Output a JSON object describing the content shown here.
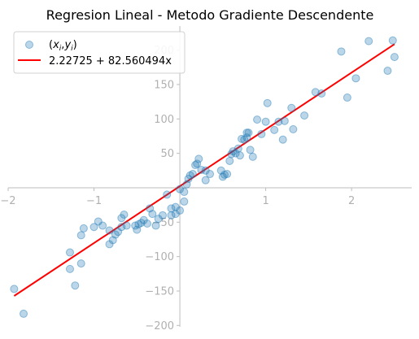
{
  "chart_data": {
    "type": "scatter",
    "title": "Regresion Lineal - Metodo Gradiente Descendente",
    "xlim": [
      -2.0,
      2.7
    ],
    "ylim": [
      -202,
      235
    ],
    "x_ticks": [
      -2,
      -1,
      0,
      1,
      2
    ],
    "y_ticks": [
      -200,
      -150,
      -100,
      -50,
      50,
      100,
      150,
      200
    ],
    "x_tick_labels": [
      "−2",
      "−1",
      "",
      "1",
      "2"
    ],
    "y_tick_labels": [
      "−200",
      "−150",
      "−100",
      "−50",
      "50",
      "100",
      "150",
      "200"
    ],
    "grid": false,
    "spines": "centered",
    "legend_position": "top-left",
    "colors": {
      "points": "#1f77b4",
      "line": "#ff0000",
      "axes": "#bdbdbd",
      "ticks": "#b0b0b0"
    },
    "series": [
      {
        "type": "scatter",
        "label_math": [
          "(",
          "x",
          "i",
          ",",
          "y",
          "i",
          ")"
        ],
        "x": [
          -1.93,
          -1.82,
          -1.28,
          -1.28,
          -1.22,
          -1.15,
          -1.15,
          -1.12,
          -1.0,
          -0.95,
          -0.9,
          -0.82,
          -0.82,
          -0.78,
          -0.75,
          -0.72,
          -0.68,
          -0.68,
          -0.65,
          -0.62,
          -0.52,
          -0.5,
          -0.48,
          -0.45,
          -0.42,
          -0.38,
          -0.35,
          -0.32,
          -0.28,
          -0.25,
          -0.2,
          -0.15,
          -0.1,
          -0.1,
          -0.05,
          -0.05,
          0.0,
          0.0,
          0.05,
          0.05,
          0.08,
          0.1,
          0.12,
          0.15,
          0.18,
          0.2,
          0.22,
          0.25,
          0.3,
          0.3,
          0.35,
          0.48,
          0.5,
          0.52,
          0.55,
          0.58,
          0.6,
          0.62,
          0.65,
          0.68,
          0.7,
          0.72,
          0.75,
          0.78,
          0.78,
          0.8,
          0.82,
          0.85,
          0.9,
          0.95,
          1.0,
          1.02,
          1.1,
          1.15,
          1.2,
          1.22,
          1.3,
          1.32,
          1.45,
          1.58,
          1.65,
          1.88,
          1.95,
          2.05,
          2.2,
          2.42,
          2.48,
          2.5
        ],
        "y": [
          -147,
          -183,
          -118,
          -94,
          -142,
          -110,
          -69,
          -59,
          -57,
          -49,
          -55,
          -82,
          -62,
          -76,
          -68,
          -64,
          -44,
          -57,
          -39,
          -55,
          -55,
          -61,
          -53,
          -51,
          -47,
          -52,
          -30,
          -38,
          -55,
          -45,
          -40,
          -10,
          -40,
          -30,
          -38,
          -28,
          -33,
          -2,
          -20,
          -6,
          5,
          13,
          18,
          20,
          33,
          35,
          42,
          26,
          25,
          11,
          20,
          25,
          16,
          19,
          20,
          39,
          49,
          53,
          50,
          57,
          47,
          71,
          70,
          80,
          73,
          80,
          55,
          45,
          99,
          78,
          96,
          123,
          84,
          96,
          70,
          97,
          116,
          85,
          105,
          139,
          137,
          198,
          131,
          159,
          213,
          170,
          214,
          190
        ]
      },
      {
        "type": "line",
        "label": "2.22725 + 82.560494x",
        "intercept": 2.22725,
        "slope": 82.560494,
        "x_range": [
          -1.93,
          2.5
        ]
      }
    ]
  }
}
